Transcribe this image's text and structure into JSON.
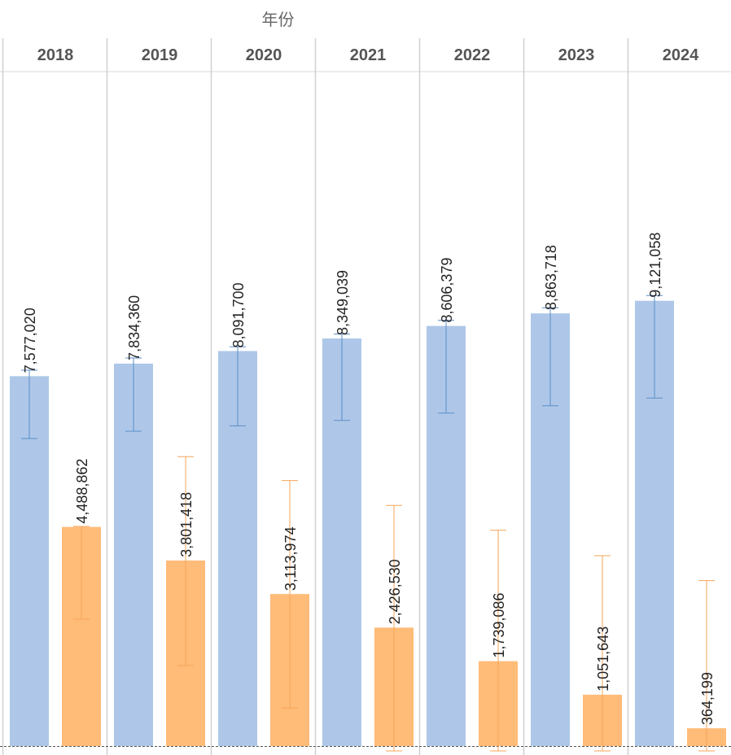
{
  "chart_data": {
    "type": "bar",
    "title": "年份",
    "categories": [
      "2018",
      "2019",
      "2020",
      "2021",
      "2022",
      "2023",
      "2024"
    ],
    "series": [
      {
        "color": "#aec7e8",
        "values": [
          7577020,
          7834360,
          8091700,
          8349039,
          8606379,
          8863718,
          9121058
        ],
        "labels": [
          "7,577,020",
          "7,834,360",
          "8,091,700",
          "8,349,039",
          "8,606,379",
          "8,863,718",
          "9,121,058"
        ],
        "error_low": [
          6300000,
          6450000,
          6560000,
          6670000,
          6820000,
          6970000,
          7130000
        ],
        "error_high": [
          7700000,
          7950000,
          8180000,
          8440000,
          8720000,
          8980000,
          9230000
        ]
      },
      {
        "color": "#ffbb78",
        "values": [
          4488862,
          3801418,
          3113974,
          2426530,
          1739086,
          1051643,
          364199
        ],
        "labels": [
          "4,488,862",
          "3,801,418",
          "3,113,974",
          "2,426,530",
          "1,739,086",
          "1,051,643",
          "364,199"
        ],
        "error_low": [
          2600000,
          1650000,
          780000,
          -100000,
          -100000,
          -100000,
          -100000
        ],
        "error_high": [
          4500000,
          5930000,
          5440000,
          4930000,
          4420000,
          3900000,
          3390000
        ]
      }
    ],
    "ylim": [
      0,
      18000000
    ],
    "grid": false,
    "legend": "none"
  }
}
